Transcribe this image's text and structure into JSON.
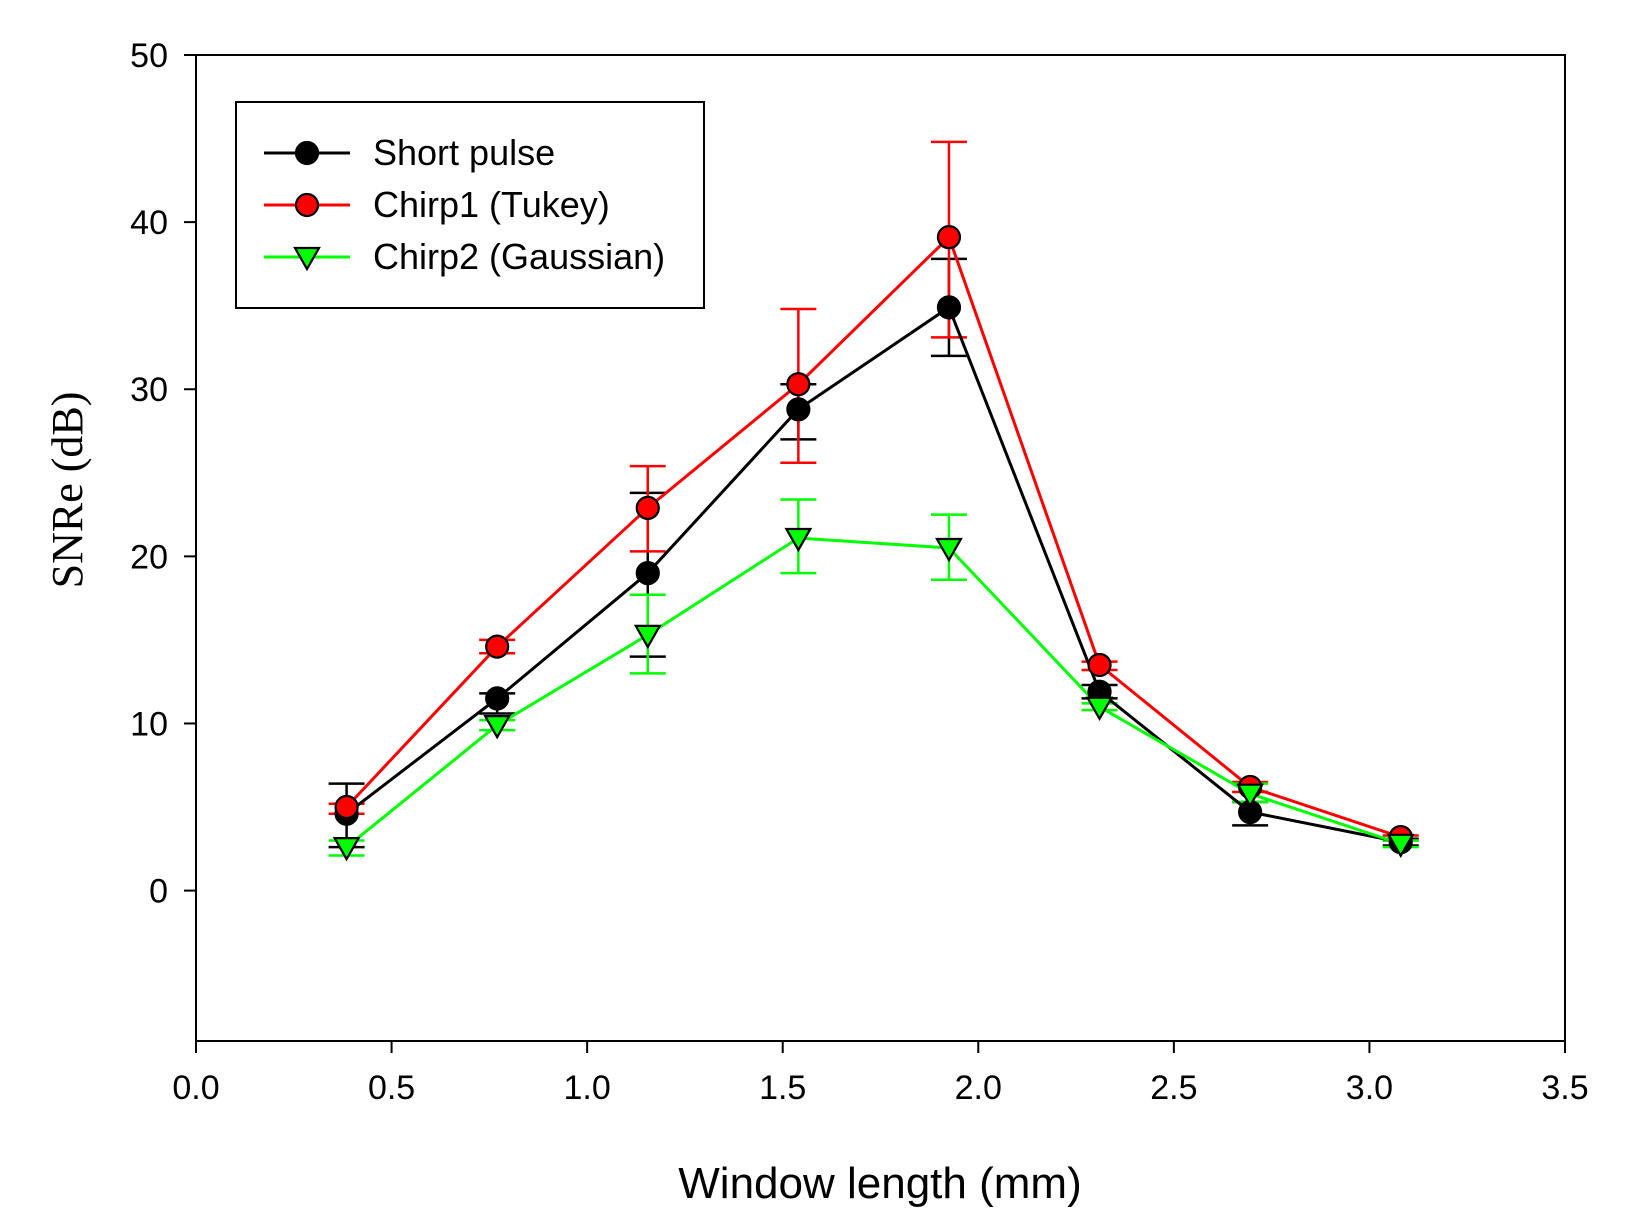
{
  "chart_data": {
    "type": "line",
    "title": "",
    "xlabel": "Window length (mm)",
    "ylabel": "SNRe (dB)",
    "xlim": [
      0.0,
      3.5
    ],
    "ylim": [
      -9,
      50
    ],
    "xticks": [
      0.0,
      0.5,
      1.0,
      1.5,
      2.0,
      2.5,
      3.0,
      3.5
    ],
    "xtick_labels": [
      "0.0",
      "0.5",
      "1.0",
      "1.5",
      "2.0",
      "2.5",
      "3.0",
      "3.5"
    ],
    "yticks": [
      0,
      10,
      20,
      30,
      40,
      50
    ],
    "ytick_labels": [
      "0",
      "10",
      "20",
      "30",
      "40",
      "50"
    ],
    "grid": false,
    "legend": {
      "position": "top-left"
    },
    "x": [
      0.385,
      0.77,
      1.155,
      1.54,
      1.925,
      2.31,
      2.695,
      3.08
    ],
    "series": [
      {
        "name": "Short pulse",
        "color": "#000000",
        "marker": "circle",
        "marker_fill": "#000000",
        "values": [
          4.6,
          11.5,
          19.0,
          28.8,
          34.9,
          11.9,
          4.7,
          2.9
        ],
        "err_upper": [
          6.4,
          11.8,
          23.8,
          30.3,
          37.8,
          12.3,
          5.3,
          3.1
        ],
        "err_lower": [
          2.6,
          10.6,
          14.0,
          27.0,
          32.0,
          11.5,
          3.9,
          2.7
        ]
      },
      {
        "name": "Chirp1 (Tukey)",
        "color": "#ff0000",
        "marker": "circle",
        "marker_fill": "#ff0000",
        "values": [
          5.0,
          14.6,
          22.9,
          30.3,
          39.1,
          13.5,
          6.2,
          3.2
        ],
        "err_upper": [
          5.2,
          15.0,
          25.4,
          34.8,
          44.8,
          13.7,
          6.5,
          3.3
        ],
        "err_lower": [
          4.6,
          14.2,
          20.3,
          25.6,
          33.1,
          13.2,
          5.9,
          3.0
        ]
      },
      {
        "name": "Chirp2 (Gaussian)",
        "color": "#00ff00",
        "marker": "triangle-down",
        "marker_fill": "#00ff00",
        "values": [
          2.6,
          9.9,
          15.3,
          21.1,
          20.5,
          11.0,
          5.8,
          2.8
        ],
        "err_upper": [
          3.0,
          10.2,
          17.7,
          23.4,
          22.5,
          11.2,
          6.4,
          3.0
        ],
        "err_lower": [
          2.1,
          9.6,
          13.0,
          19.0,
          18.6,
          10.8,
          5.3,
          2.6
        ]
      }
    ]
  }
}
